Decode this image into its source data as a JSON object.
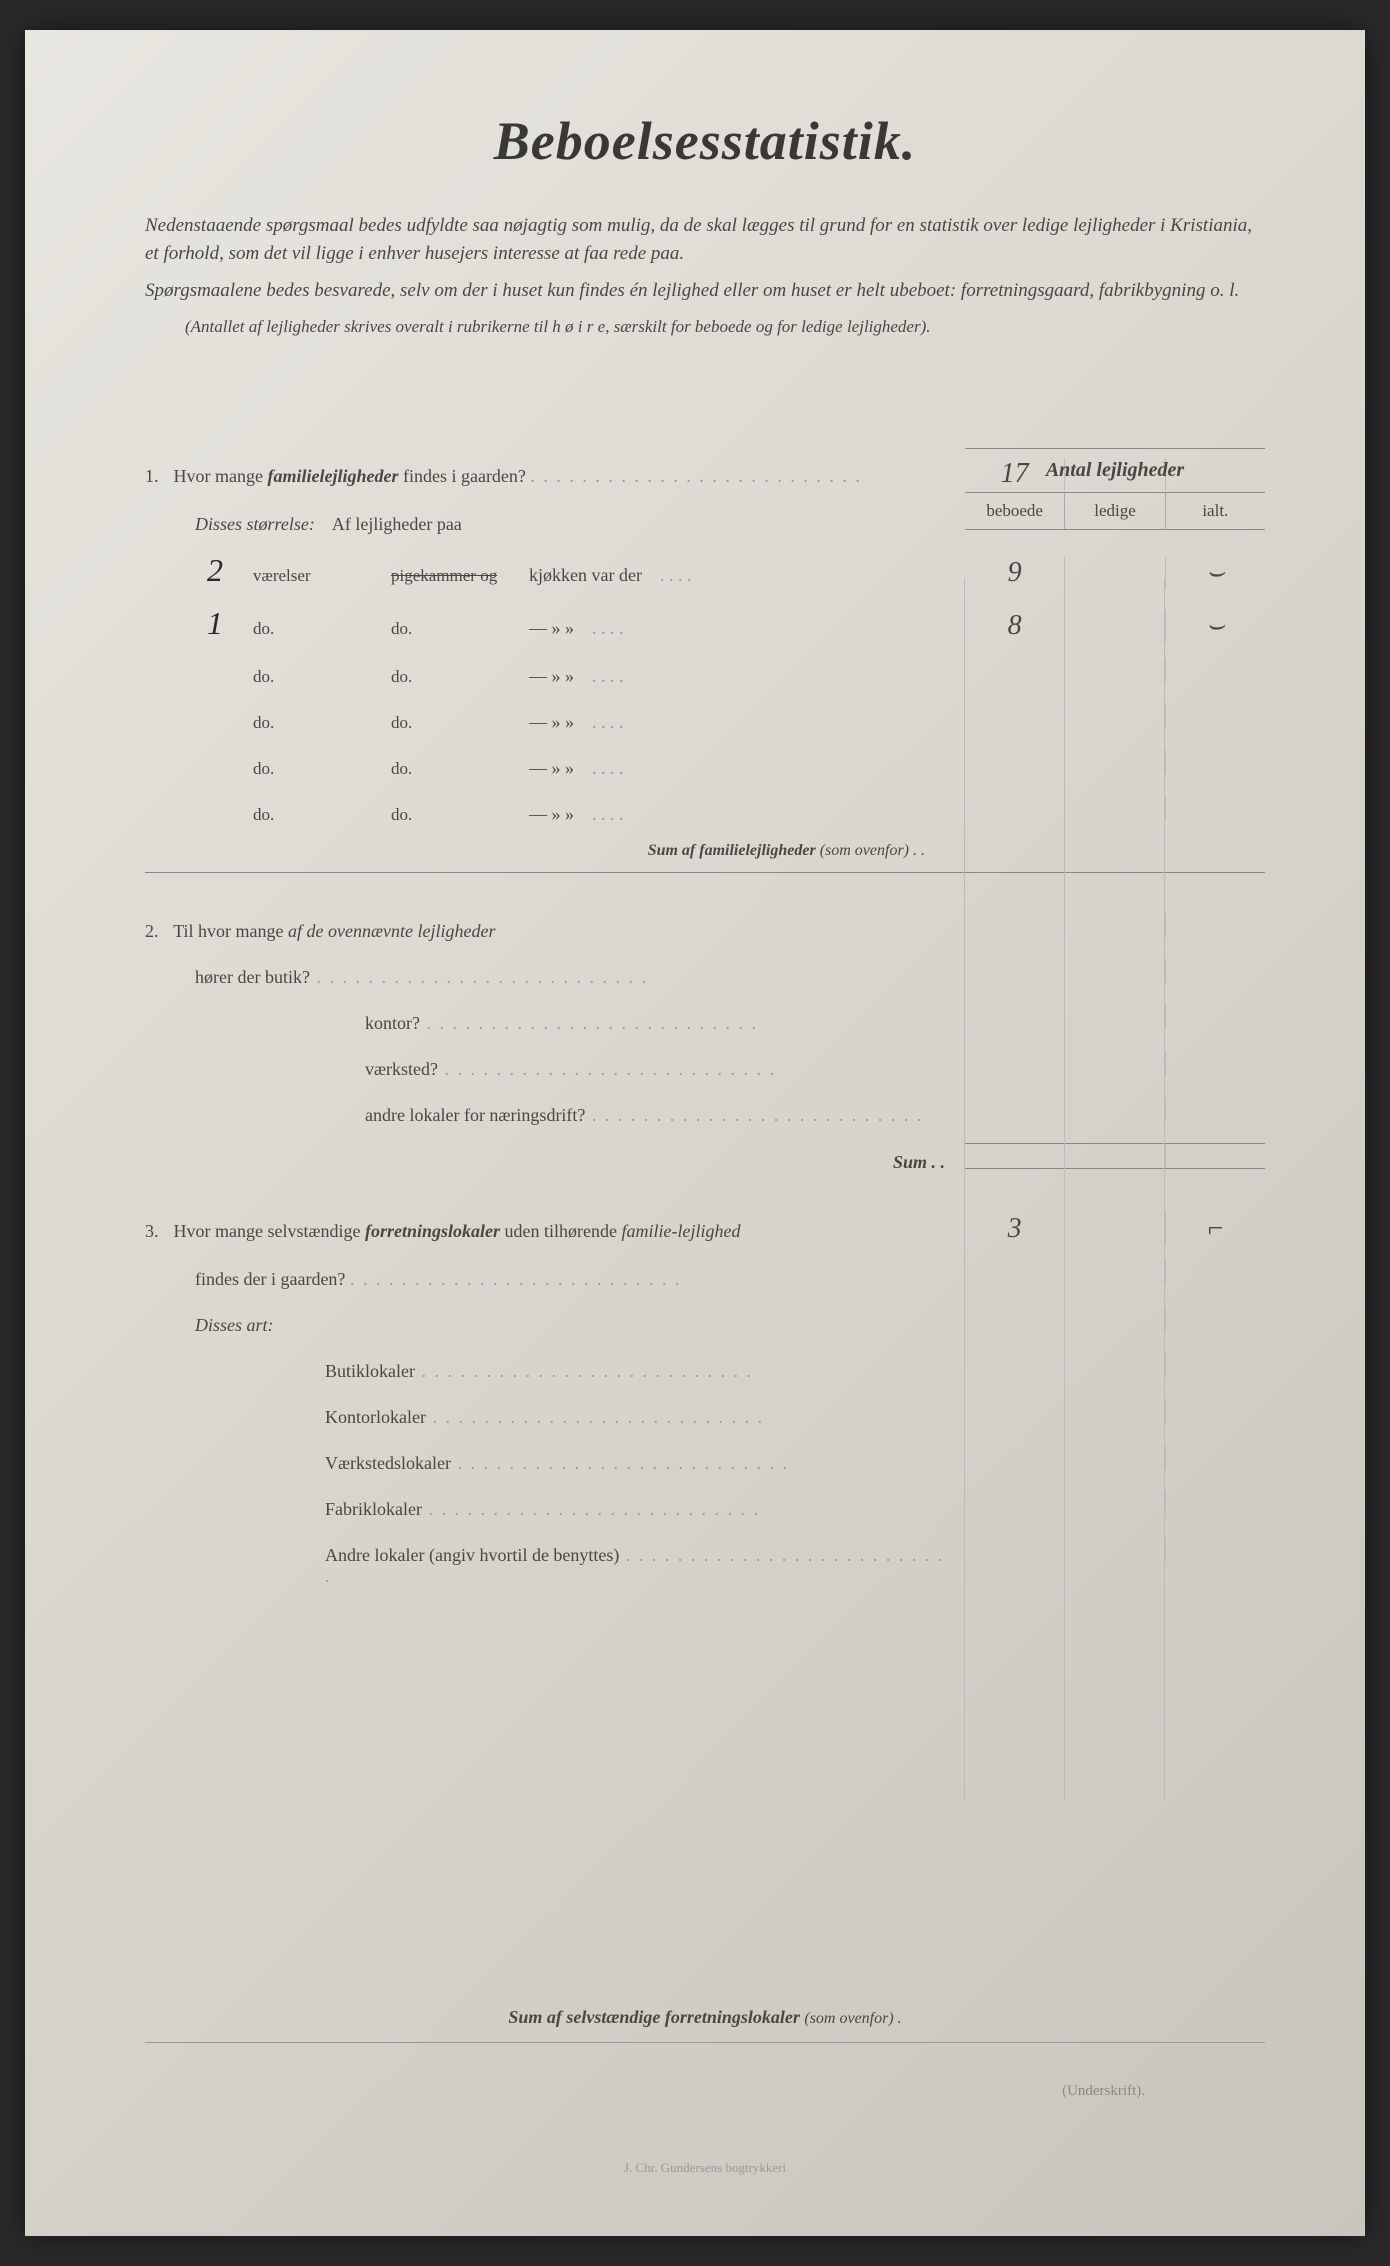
{
  "title": "Beboelsesstatistik.",
  "intro_p1": "Nedenstaaende spørgsmaal bedes udfyldte saa nøjagtig som mulig, da de skal lægges til grund for en statistik over ledige lejligheder i Kristiania, et forhold, som det vil ligge i enhver husejers interesse at faa rede paa.",
  "intro_p2": "Spørgsmaalene bedes besvarede, selv om der i huset kun findes én lejlighed eller om huset er helt ubeboet: forretningsgaard, fabrikbygning o. l.",
  "intro_note": "(Antallet af lejligheder skrives overalt i rubrikerne til h ø i r e, særskilt for beboede og for ledige lejligheder).",
  "col_header": "Antal lejligheder",
  "subcols": {
    "a": "beboede",
    "b": "ledige",
    "c": "ialt."
  },
  "q1": {
    "num": "1.",
    "text_a": "Hvor mange ",
    "text_bold": "familielejligheder",
    "text_b": " findes i gaarden?",
    "val_beboede": "17",
    "disses": "Disses størrelse:",
    "af_lej": "Af lejligheder paa",
    "rows": [
      {
        "hw": "2",
        "c1": "værelser",
        "c2_strike": "pigekammer og",
        "c3": "kjøkken var der",
        "beboede": "9",
        "ialt": "⌣"
      },
      {
        "hw": "1",
        "c1": "do.",
        "c2": "do.",
        "c3": "—   »   »",
        "beboede": "8",
        "ialt": "⌣"
      },
      {
        "hw": "",
        "c1": "do.",
        "c2": "do.",
        "c3": "—   »   »",
        "beboede": "",
        "ialt": ""
      },
      {
        "hw": "",
        "c1": "do.",
        "c2": "do.",
        "c3": "—   »   »",
        "beboede": "",
        "ialt": ""
      },
      {
        "hw": "",
        "c1": "do.",
        "c2": "do.",
        "c3": "—   »   »",
        "beboede": "",
        "ialt": ""
      },
      {
        "hw": "",
        "c1": "do.",
        "c2": "do.",
        "c3": "—   »   »",
        "beboede": "",
        "ialt": ""
      }
    ],
    "sum_label": "Sum af familielejligheder",
    "sum_paren": "(som ovenfor) . ."
  },
  "q2": {
    "num": "2.",
    "text_a": "Til hvor mange ",
    "text_it": "af de ovennævnte lejligheder",
    "lines": [
      "hører der butik?",
      "kontor?",
      "værksted?",
      "andre lokaler for næringsdrift?"
    ],
    "sum": "Sum . ."
  },
  "q3": {
    "num": "3.",
    "text_a": "Hvor mange selvstændige ",
    "text_bold": "forretningslokaler",
    "text_b": " uden tilhørende ",
    "text_it": "familie-lejlighed",
    "text_c": " findes der i gaarden?",
    "val_beboede": "3",
    "val_ialt": "⌐",
    "disses": "Disses art:",
    "lines": [
      "Butiklokaler",
      "Kontorlokaler",
      "Værkstedslokaler",
      "Fabriklokaler",
      "Andre lokaler (angiv hvortil de benyttes)"
    ]
  },
  "footer_sum_a": "Sum af selvstændige forretningslokaler",
  "footer_sum_b": "(som ovenfor) .",
  "underskrift": "(Underskrift).",
  "printer": "J. Chr. Gundersens bogtrykkeri"
}
